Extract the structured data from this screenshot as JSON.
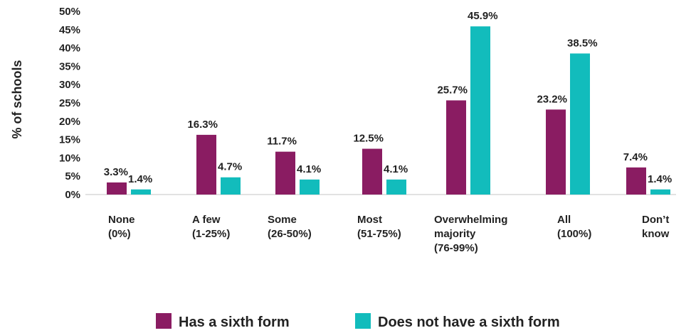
{
  "chart_data": {
    "type": "bar",
    "ylabel": "% of schools",
    "ylim": [
      0,
      50
    ],
    "yticks": [
      "0%",
      "5%",
      "10%",
      "15%",
      "20%",
      "25%",
      "30%",
      "35%",
      "40%",
      "45%",
      "50%"
    ],
    "categories": [
      [
        "None",
        "(0%)"
      ],
      [
        "A few",
        "(1-25%)"
      ],
      [
        "Some",
        "(26-50%)"
      ],
      [
        "Most",
        "(51-75%)"
      ],
      [
        "Overwhelming",
        "majority",
        "(76-99%)"
      ],
      [
        "All",
        "(100%)"
      ],
      [
        "Don’t",
        "know"
      ]
    ],
    "series": [
      {
        "name": "Has a sixth form",
        "color": "#8a1c62",
        "values": [
          3.3,
          16.3,
          11.7,
          12.5,
          25.7,
          23.2,
          7.4
        ],
        "labels": [
          "3.3%",
          "16.3%",
          "11.7%",
          "12.5%",
          "25.7%",
          "23.2%",
          "7.4%"
        ]
      },
      {
        "name": "Does not have a sixth form",
        "color": "#12bcbc",
        "values": [
          1.4,
          4.7,
          4.1,
          4.1,
          45.9,
          38.5,
          1.4
        ],
        "labels": [
          "1.4%",
          "4.7%",
          "4.1%",
          "4.1%",
          "45.9%",
          "38.5%",
          "1.4%"
        ]
      }
    ],
    "grid": false,
    "legend": "bottom"
  }
}
